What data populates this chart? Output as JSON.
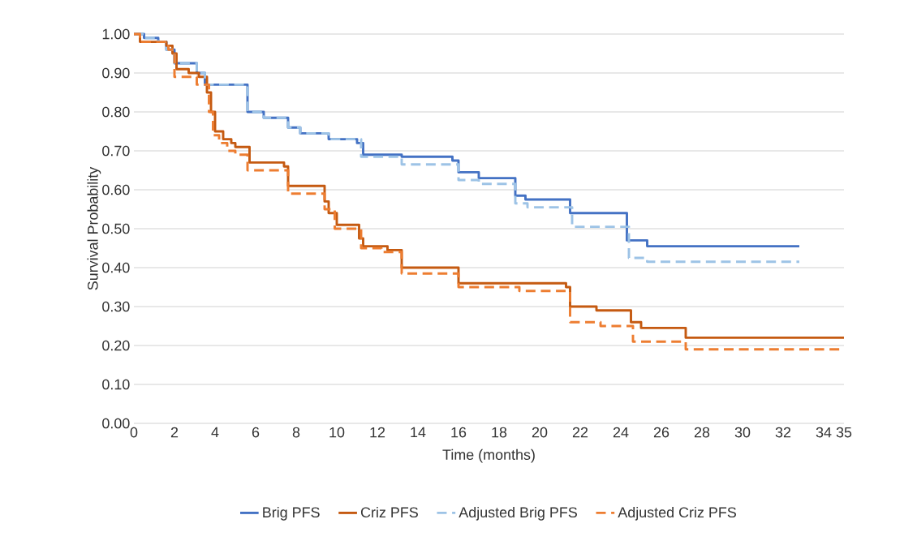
{
  "chart_data": {
    "type": "step",
    "xlabel": "Time (months)",
    "ylabel": "Survival  Probability",
    "xlim": [
      0,
      35
    ],
    "xticks": [
      0,
      2,
      4,
      6,
      8,
      10,
      12,
      14,
      16,
      18,
      20,
      22,
      24,
      26,
      28,
      30,
      32,
      34,
      35
    ],
    "ylim": [
      0,
      1
    ],
    "yticks": [
      {
        "value": 0,
        "label": "0.00"
      },
      {
        "value": 0.1,
        "label": "0.10"
      },
      {
        "value": 0.2,
        "label": "0.20"
      },
      {
        "value": 0.3,
        "label": "0.30"
      },
      {
        "value": 0.4,
        "label": "0.40"
      },
      {
        "value": 0.5,
        "label": "0.50"
      },
      {
        "value": 0.6,
        "label": "0.60"
      },
      {
        "value": 0.7,
        "label": "0.70"
      },
      {
        "value": 0.8,
        "label": "0.80"
      },
      {
        "value": 0.9,
        "label": "0.90"
      },
      {
        "value": 1,
        "label": "1.00"
      }
    ],
    "grid": "y",
    "legend": "bottom",
    "marker": "none",
    "series": [
      {
        "name": "Brig PFS",
        "color": "#4472c4",
        "line_style": "solid",
        "x": [
          0,
          0.5,
          1.2,
          1.6,
          2.0,
          3.1,
          3.5,
          5.6,
          6.4,
          7.6,
          8.2,
          9.6,
          11.0,
          11.3,
          13.2,
          15.7,
          16.0,
          17.0,
          18.8,
          19.3,
          21.5,
          24.3,
          25.3,
          32.8
        ],
        "values": [
          1.0,
          0.99,
          0.98,
          0.96,
          0.925,
          0.9,
          0.87,
          0.8,
          0.785,
          0.76,
          0.745,
          0.73,
          0.72,
          0.69,
          0.685,
          0.675,
          0.645,
          0.63,
          0.585,
          0.575,
          0.54,
          0.47,
          0.455,
          0.455
        ]
      },
      {
        "name": "Criz PFS",
        "color": "#c55a11",
        "line_style": "solid",
        "x": [
          0,
          0.3,
          1.6,
          1.9,
          2.1,
          2.7,
          3.2,
          3.6,
          3.8,
          4.0,
          4.4,
          4.8,
          5.0,
          5.7,
          7.4,
          7.6,
          9.4,
          9.6,
          10.0,
          11.1,
          11.3,
          12.5,
          13.2,
          16.0,
          21.3,
          21.5,
          22.8,
          24.5,
          25.0,
          27.2,
          35.0
        ],
        "values": [
          1.0,
          0.98,
          0.97,
          0.95,
          0.91,
          0.9,
          0.89,
          0.85,
          0.8,
          0.75,
          0.73,
          0.72,
          0.71,
          0.67,
          0.66,
          0.61,
          0.57,
          0.54,
          0.51,
          0.475,
          0.455,
          0.445,
          0.4,
          0.36,
          0.35,
          0.3,
          0.29,
          0.26,
          0.245,
          0.22,
          0.22
        ]
      },
      {
        "name": "Adjusted Brig PFS",
        "color": "#9dc3e6",
        "line_style": "dashed",
        "x": [
          0,
          0.5,
          1.2,
          1.6,
          2.0,
          3.1,
          3.5,
          5.6,
          6.4,
          7.6,
          8.2,
          9.6,
          11.2,
          13.2,
          16.0,
          17.0,
          18.8,
          19.4,
          21.6,
          24.4,
          25.3,
          32.8
        ],
        "values": [
          1.0,
          0.99,
          0.98,
          0.96,
          0.925,
          0.9,
          0.87,
          0.8,
          0.785,
          0.76,
          0.745,
          0.73,
          0.685,
          0.665,
          0.625,
          0.615,
          0.565,
          0.555,
          0.505,
          0.425,
          0.415,
          0.415
        ]
      },
      {
        "name": "Adjusted Criz PFS",
        "color": "#ed7d31",
        "line_style": "dashed",
        "x": [
          0,
          0.3,
          1.7,
          2.0,
          3.1,
          3.7,
          3.9,
          4.2,
          4.6,
          5.0,
          5.6,
          7.6,
          9.4,
          9.9,
          11.2,
          12.2,
          13.2,
          16.0,
          19.0,
          21.5,
          23.0,
          24.6,
          27.2,
          35.0
        ],
        "values": [
          1.0,
          0.98,
          0.96,
          0.89,
          0.87,
          0.8,
          0.74,
          0.72,
          0.7,
          0.69,
          0.65,
          0.59,
          0.55,
          0.5,
          0.45,
          0.44,
          0.385,
          0.35,
          0.34,
          0.26,
          0.25,
          0.21,
          0.19,
          0.19
        ]
      }
    ]
  }
}
